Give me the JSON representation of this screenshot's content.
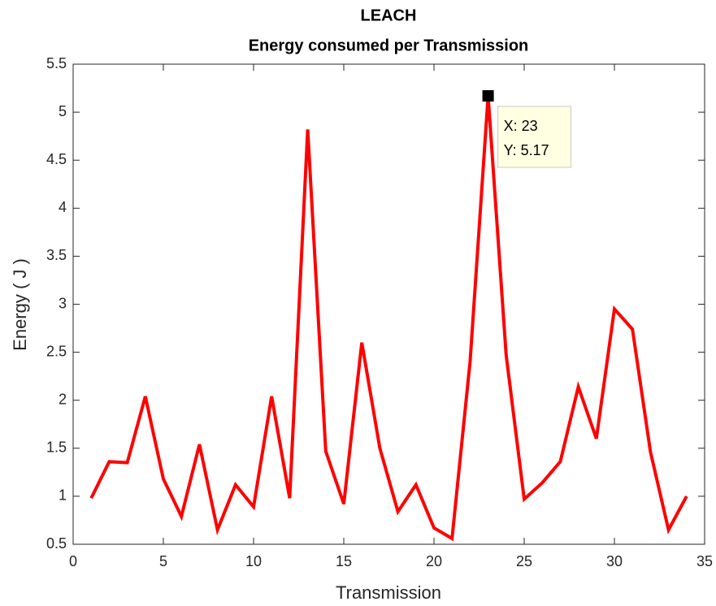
{
  "chart_data": {
    "type": "line",
    "title": [
      "LEACH",
      "Energy consumed per Transmission"
    ],
    "x_label": "Transmission",
    "y_label": "Energy ( J )",
    "x": [
      1,
      2,
      3,
      4,
      5,
      6,
      7,
      8,
      9,
      10,
      11,
      12,
      13,
      14,
      15,
      16,
      17,
      18,
      19,
      20,
      21,
      22,
      23,
      24,
      25,
      26,
      27,
      28,
      29,
      30,
      31,
      32,
      33,
      34
    ],
    "series": [
      {
        "color": "#ff0000",
        "values": [
          0.98,
          1.36,
          1.35,
          2.04,
          1.18,
          0.79,
          1.54,
          0.65,
          1.12,
          0.89,
          2.04,
          0.98,
          4.82,
          1.47,
          0.92,
          2.6,
          1.5,
          0.84,
          1.12,
          0.67,
          0.56,
          2.4,
          5.17,
          2.47,
          0.97,
          1.14,
          1.36,
          2.14,
          1.6,
          2.95,
          2.74,
          1.46,
          0.65,
          1.0
        ]
      }
    ],
    "datatip": {
      "point": 22,
      "lines": [
        "X: 23",
        "Y: 5.17"
      ]
    },
    "xlim": [
      0,
      35
    ],
    "xticks": [
      0,
      5,
      10,
      15,
      20,
      25,
      30,
      35
    ],
    "ylim": [
      0.5,
      5.5
    ],
    "yticks": [
      0.5,
      1,
      1.5,
      2,
      2.5,
      3,
      3.5,
      4,
      4.5,
      5,
      5.5
    ],
    "grid": false
  }
}
